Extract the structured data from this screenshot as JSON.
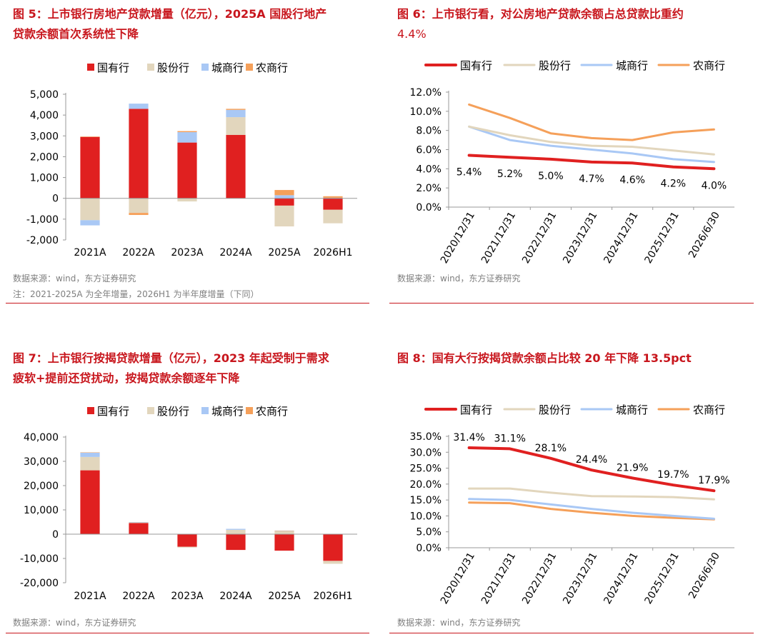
{
  "figures": [
    {
      "title_line1": "图 5：上市银行房地产贷款增量（亿元），2025A 国股行地产",
      "title_line2": "贷款余额首次系统性下降",
      "source": "数据来源：wind，东方证券研究",
      "note": "注：2021-2025A 为全年增量，2026H1 为半年度增量（下同）"
    },
    {
      "title_line1": "图 6：上市银行看，对公房地产贷款余额占总贷款比重约",
      "title_line2": "4.4%",
      "source": "数据来源：wind，东方证券研究"
    },
    {
      "title_line1": "图 7：上市银行按揭贷款增量（亿元），2023 年起受制于需求",
      "title_line2": "疲软+提前还贷扰动，按揭贷款余额逐年下降",
      "source": "数据来源：wind，东方证券研究"
    },
    {
      "title_line1": "图 8：国有大行按揭贷款余额占比较 20 年下降 13.5pct",
      "title_line2": "",
      "source": "数据来源：wind，东方证券研究"
    }
  ],
  "chart_data": [
    {
      "type": "bar",
      "stacked": true,
      "categories": [
        "2021A",
        "2022A",
        "2023A",
        "2024A",
        "2025A",
        "2026H1"
      ],
      "series": [
        {
          "name": "国有行",
          "color": "#e02020",
          "values": [
            2950,
            4300,
            2680,
            3050,
            -350,
            -550
          ]
        },
        {
          "name": "股份行",
          "color": "#e2d6bd",
          "values": [
            -1050,
            -700,
            -150,
            850,
            -1000,
            -650
          ]
        },
        {
          "name": "城商行",
          "color": "#a9c8f5",
          "values": [
            -250,
            250,
            500,
            350,
            150,
            20
          ]
        },
        {
          "name": "农商行",
          "color": "#f5a05a",
          "values": [
            20,
            -100,
            50,
            50,
            250,
            80
          ]
        }
      ],
      "yticks": [
        "5,000",
        "4,000",
        "3,000",
        "2,000",
        "1,000",
        "0",
        "-1,000",
        "-2,000"
      ],
      "ylim": [
        -2000,
        5000
      ],
      "legend": "top"
    },
    {
      "type": "line",
      "categories": [
        "2020/12/31",
        "2021/12/31",
        "2022/12/31",
        "2023/12/31",
        "2024/12/31",
        "2025/12/31",
        "2026/6/30"
      ],
      "series": [
        {
          "name": "国有行",
          "color": "#e02020",
          "width": 4,
          "values": [
            5.4,
            5.2,
            5.0,
            4.7,
            4.6,
            4.2,
            4.0
          ]
        },
        {
          "name": "股份行",
          "color": "#e2d6bd",
          "width": 3,
          "values": [
            8.4,
            7.5,
            6.8,
            6.4,
            6.3,
            5.9,
            5.5
          ]
        },
        {
          "name": "城商行",
          "color": "#a9c8f5",
          "width": 3,
          "values": [
            8.4,
            7.0,
            6.4,
            6.0,
            5.6,
            5.0,
            4.7
          ]
        },
        {
          "name": "农商行",
          "color": "#f5a05a",
          "width": 3,
          "values": [
            10.7,
            9.3,
            7.7,
            7.2,
            7.0,
            7.8,
            8.1
          ]
        }
      ],
      "data_labels": [
        "5.4%",
        "5.2%",
        "5.0%",
        "4.7%",
        "4.6%",
        "4.2%",
        "4.0%"
      ],
      "yticks": [
        "12.0%",
        "10.0%",
        "8.0%",
        "6.0%",
        "4.0%",
        "2.0%",
        "0.0%"
      ],
      "ylim": [
        0,
        12
      ],
      "legend": "top"
    },
    {
      "type": "bar",
      "stacked": true,
      "categories": [
        "2021A",
        "2022A",
        "2023A",
        "2024A",
        "2025A",
        "2026H1"
      ],
      "series": [
        {
          "name": "国有行",
          "color": "#e02020",
          "values": [
            26300,
            4600,
            -5200,
            -6500,
            -6800,
            -11000
          ]
        },
        {
          "name": "股份行",
          "color": "#e2d6bd",
          "values": [
            5500,
            300,
            -300,
            1800,
            1200,
            -1200
          ]
        },
        {
          "name": "城商行",
          "color": "#a9c8f5",
          "values": [
            1800,
            100,
            0,
            400,
            200,
            0
          ]
        },
        {
          "name": "农商行",
          "color": "#f5a05a",
          "values": [
            100,
            0,
            0,
            0,
            50,
            0
          ]
        }
      ],
      "yticks": [
        "40,000",
        "30,000",
        "20,000",
        "10,000",
        "0",
        "-10,000",
        "-20,000"
      ],
      "ylim": [
        -20000,
        40000
      ],
      "legend": "top"
    },
    {
      "type": "line",
      "categories": [
        "2020/12/31",
        "2021/12/31",
        "2022/12/31",
        "2023/12/31",
        "2024/12/31",
        "2025/12/31",
        "2026/6/30"
      ],
      "series": [
        {
          "name": "国有行",
          "color": "#e02020",
          "width": 4,
          "values": [
            31.4,
            31.1,
            28.1,
            24.4,
            21.9,
            19.7,
            17.9
          ]
        },
        {
          "name": "股份行",
          "color": "#e2d6bd",
          "width": 3,
          "values": [
            18.6,
            18.6,
            17.3,
            16.2,
            16.1,
            15.9,
            15.2
          ]
        },
        {
          "name": "城商行",
          "color": "#a9c8f5",
          "width": 3,
          "values": [
            15.3,
            15.0,
            13.6,
            12.2,
            11.0,
            10.0,
            9.1
          ]
        },
        {
          "name": "农商行",
          "color": "#f5a05a",
          "width": 3,
          "values": [
            14.2,
            14.0,
            12.2,
            11.0,
            10.0,
            9.4,
            8.9
          ]
        }
      ],
      "data_labels": [
        "31.4%",
        "31.1%",
        "28.1%",
        "24.4%",
        "21.9%",
        "19.7%",
        "17.9%"
      ],
      "yticks": [
        "35.0%",
        "30.0%",
        "25.0%",
        "20.0%",
        "15.0%",
        "10.0%",
        "5.0%",
        "0.0%"
      ],
      "ylim": [
        0,
        35
      ],
      "legend": "top"
    }
  ]
}
